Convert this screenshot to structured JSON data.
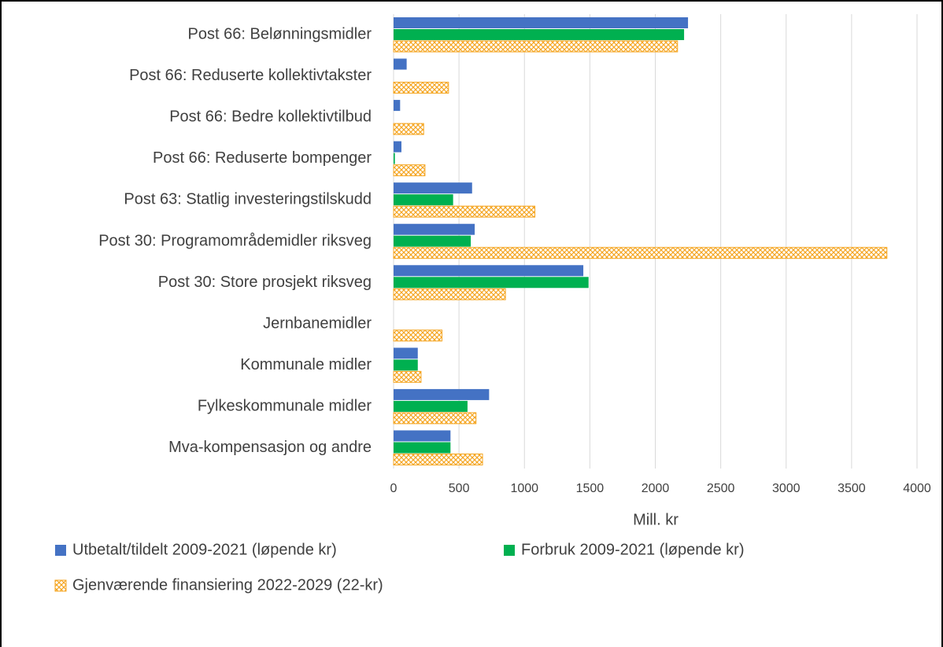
{
  "chart_data": {
    "type": "barh",
    "categories": [
      "Post 66: Belønningsmidler",
      "Post 66: Reduserte kollektivtakster",
      "Post 66: Bedre kollektivtilbud",
      "Post 66: Reduserte bompenger",
      "Post 63: Statlig investeringstilskudd",
      "Post 30: Programområdemidler riksveg",
      "Post 30: Store prosjekt riksveg",
      "Jernbanemidler",
      "Kommunale midler",
      "Fylkeskommunale midler",
      "Mva-kompensasjon og andre"
    ],
    "series": [
      {
        "name": "Utbetalt/tildelt 2009-2021 (løpende kr)",
        "color": "#4472c4",
        "values": [
          2250,
          100,
          50,
          60,
          600,
          620,
          1450,
          0,
          185,
          730,
          435
        ]
      },
      {
        "name": "Forbruk 2009-2021 (løpende kr)",
        "color": "#00b050",
        "values": [
          2220,
          0,
          0,
          10,
          455,
          590,
          1490,
          0,
          185,
          565,
          435
        ]
      },
      {
        "name": "Gjenværende finansiering 2022-2029 (22-kr)",
        "color": "#f5a623",
        "pattern": "crosshatch",
        "values": [
          2170,
          420,
          230,
          240,
          1080,
          3770,
          855,
          370,
          210,
          630,
          680
        ]
      }
    ],
    "xlabel": "Mill. kr",
    "xlim": [
      0,
      4000
    ],
    "xticks": [
      0,
      500,
      1000,
      1500,
      2000,
      2500,
      3000,
      3500,
      4000
    ],
    "grid": true
  }
}
